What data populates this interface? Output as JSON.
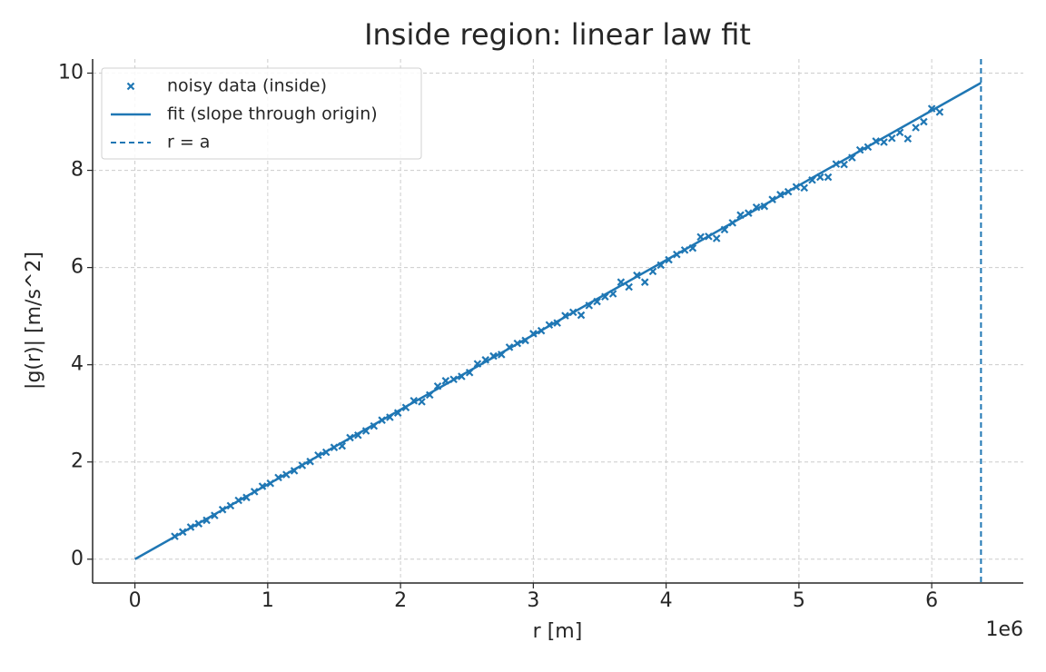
{
  "chart_data": {
    "type": "scatter",
    "title": "Inside region: linear law fit",
    "x_label": "r [m]",
    "y_label": "|g(r)| [m/s^2]",
    "x_offset_label": "1e6",
    "xlim": [
      -318550,
      6689550
    ],
    "ylim": [
      -0.49,
      10.29
    ],
    "xticks": [
      0,
      {
        "value": 1000000,
        "label": "1"
      },
      {
        "value": 2000000,
        "label": "2"
      },
      {
        "value": 3000000,
        "label": "3"
      },
      {
        "value": 4000000,
        "label": "4"
      },
      {
        "value": 5000000,
        "label": "5"
      },
      {
        "value": 6000000,
        "label": "6"
      }
    ],
    "yticks": [
      0,
      2,
      4,
      6,
      8,
      10
    ],
    "grid": true,
    "legend": "upper left",
    "series": [
      {
        "name": "noisy data (inside)",
        "type": "scatter",
        "marker": "x",
        "color": "#1f77b4",
        "x": [
          300000,
          360000,
          420000,
          480000,
          540000,
          600000,
          660000,
          720000,
          780000,
          840000,
          900000,
          960000,
          1020000,
          1080000,
          1140000,
          1200000,
          1260000,
          1320000,
          1380000,
          1440000,
          1500000,
          1560000,
          1620000,
          1680000,
          1740000,
          1800000,
          1860000,
          1920000,
          1980000,
          2040000,
          2100000,
          2160000,
          2220000,
          2280000,
          2340000,
          2400000,
          2460000,
          2520000,
          2580000,
          2640000,
          2700000,
          2760000,
          2820000,
          2880000,
          2940000,
          3000000,
          3060000,
          3120000,
          3180000,
          3240000,
          3300000,
          3360000,
          3420000,
          3480000,
          3540000,
          3600000,
          3660000,
          3720000,
          3780000,
          3840000,
          3900000,
          3960000,
          4020000,
          4080000,
          4140000,
          4200000,
          4260000,
          4320000,
          4380000,
          4440000,
          4500000,
          4560000,
          4620000,
          4680000,
          4740000,
          4800000,
          4860000,
          4920000,
          4980000,
          5040000,
          5100000,
          5160000,
          5220000,
          5280000,
          5340000,
          5400000,
          5460000,
          5520000,
          5580000,
          5640000,
          5700000,
          5760000,
          5820000,
          5880000,
          5940000,
          6000000,
          6060000
        ],
        "values": [
          0.47,
          0.56,
          0.66,
          0.73,
          0.8,
          0.9,
          1.02,
          1.1,
          1.21,
          1.27,
          1.39,
          1.5,
          1.56,
          1.68,
          1.74,
          1.82,
          1.93,
          2.01,
          2.14,
          2.2,
          2.3,
          2.33,
          2.5,
          2.55,
          2.64,
          2.74,
          2.86,
          2.92,
          3.01,
          3.12,
          3.26,
          3.24,
          3.38,
          3.56,
          3.67,
          3.7,
          3.76,
          3.84,
          4.02,
          4.1,
          4.18,
          4.21,
          4.36,
          4.44,
          4.5,
          4.64,
          4.7,
          4.82,
          4.86,
          5.01,
          5.08,
          5.02,
          5.22,
          5.3,
          5.4,
          5.46,
          5.7,
          5.6,
          5.84,
          5.7,
          5.92,
          6.05,
          6.16,
          6.27,
          6.36,
          6.4,
          6.63,
          6.64,
          6.6,
          6.78,
          6.92,
          7.08,
          7.12,
          7.24,
          7.26,
          7.4,
          7.5,
          7.56,
          7.66,
          7.64,
          7.8,
          7.86,
          7.86,
          8.13,
          8.12,
          8.26,
          8.42,
          8.48,
          8.6,
          8.58,
          8.66,
          8.78,
          8.65,
          8.88,
          9.0,
          9.27,
          9.2
        ]
      },
      {
        "name": "fit (slope through origin)",
        "type": "line",
        "color": "#1f77b4",
        "x": [
          0,
          6371000
        ],
        "values": [
          0,
          9.8
        ]
      },
      {
        "name": "r = a",
        "type": "vline",
        "linestyle": "dashed",
        "color": "#1f77b4",
        "x": 6371000
      }
    ]
  }
}
